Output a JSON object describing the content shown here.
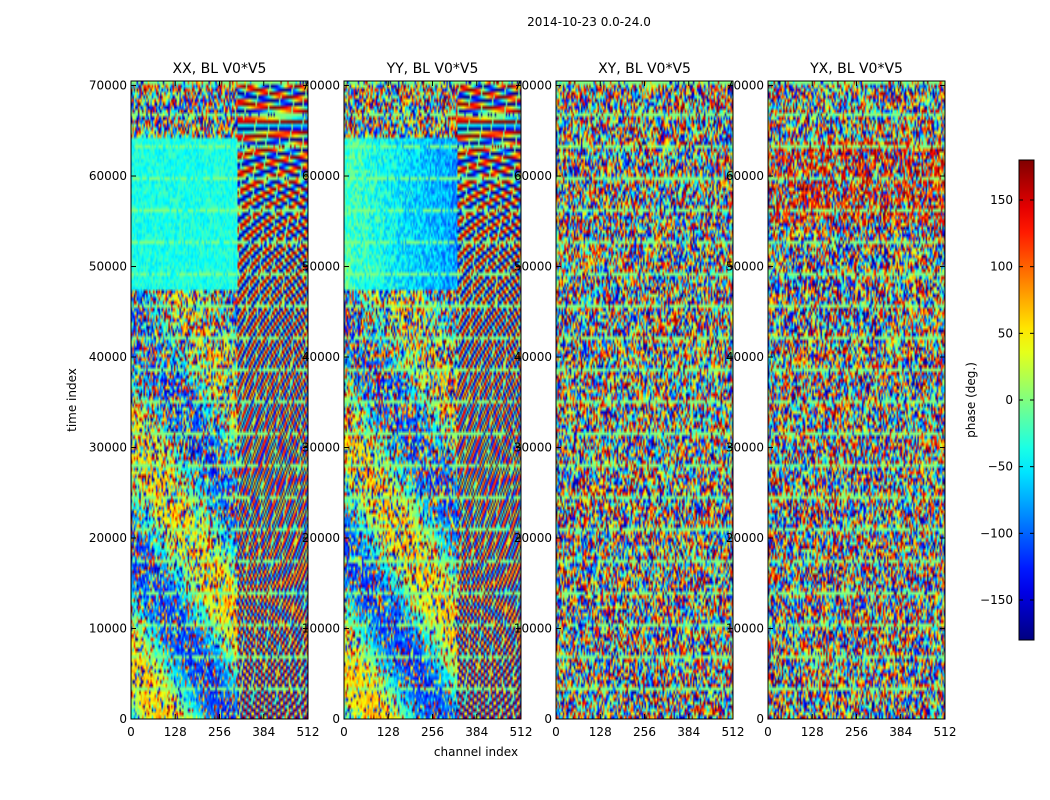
{
  "chart_data": {
    "type": "heatmap",
    "suptitle": "2014-10-23 0.0-24.0",
    "xlabel": "channel index",
    "ylabel": "time index",
    "xlim": [
      0,
      512
    ],
    "ylim": [
      0,
      70500
    ],
    "x_ticks": [
      0,
      128,
      256,
      384,
      512
    ],
    "y_ticks": [
      0,
      10000,
      20000,
      30000,
      40000,
      50000,
      60000,
      70000
    ],
    "colormap": "jet",
    "panels": [
      {
        "title": "XX, BL V0*V5",
        "pattern": "structured-xx"
      },
      {
        "title": "YY, BL V0*V5",
        "pattern": "structured-yy"
      },
      {
        "title": "XY, BL V0*V5",
        "pattern": "noise"
      },
      {
        "title": "YX, BL V0*V5",
        "pattern": "noise-warm"
      }
    ],
    "colorbar": {
      "label": "phase (deg.)",
      "range": [
        -180,
        180
      ],
      "ticks": [
        -150,
        -100,
        -50,
        0,
        50,
        100,
        150
      ]
    }
  }
}
